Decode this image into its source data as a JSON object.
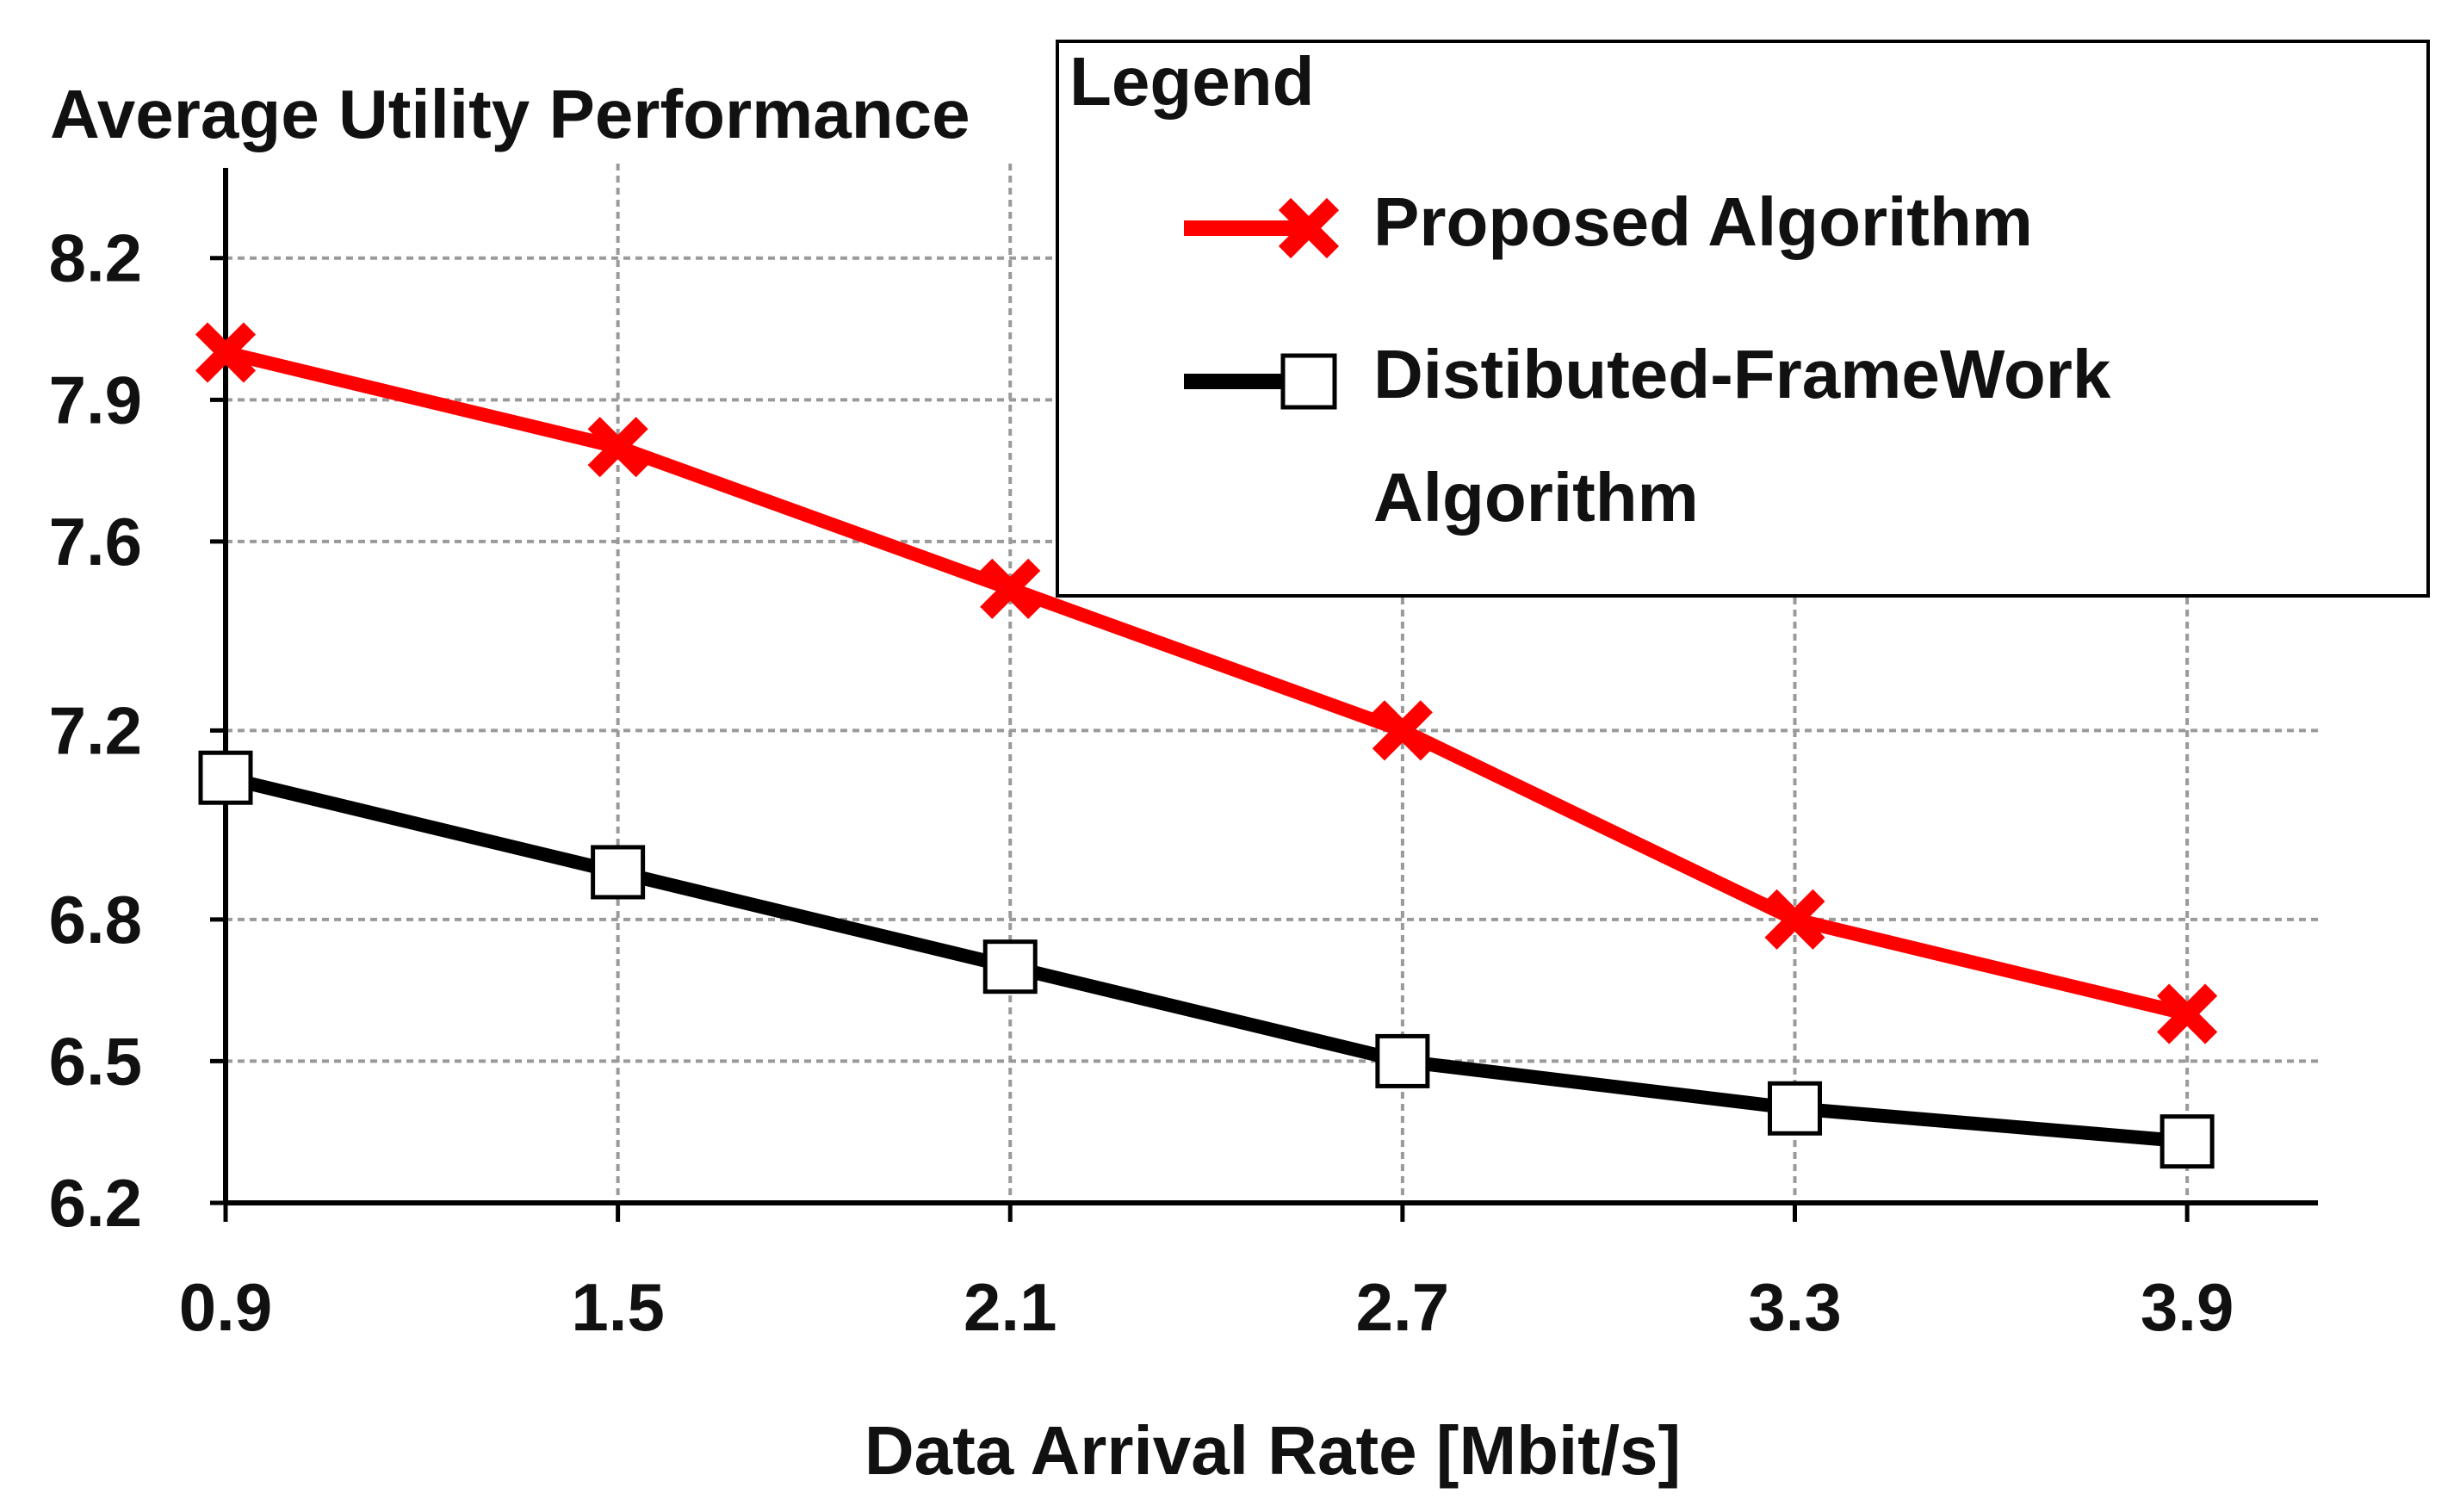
{
  "chart_data": {
    "type": "line",
    "title": "",
    "ylabel": "Average Utility Performance",
    "xlabel": "Data Arrival Rate [Mbit/s]",
    "categories": [
      "0.9",
      "1.5",
      "2.1",
      "2.7",
      "3.3",
      "3.9"
    ],
    "x": [
      0.9,
      1.5,
      2.1,
      2.7,
      3.3,
      3.9
    ],
    "xlim": [
      0.9,
      4.1
    ],
    "ylim": [
      6.2,
      8.4
    ],
    "yticks": [
      6.2,
      6.5,
      6.8,
      7.2,
      7.6,
      7.9,
      8.2
    ],
    "ytick_labels": [
      "6.2",
      "6.5",
      "6.8",
      "7.2",
      "7.6",
      "7.9",
      "8.2"
    ],
    "grid": true,
    "series": [
      {
        "name": "Proposed Algorithm",
        "values": [
          8.0,
          7.8,
          7.5,
          7.2,
          6.8,
          6.6
        ],
        "color": "#ff0000",
        "marker": "x"
      },
      {
        "name": "Distibuted-FrameWork Algorithm",
        "name_lines": [
          "Distibuted-FrameWork",
          "Algorithm"
        ],
        "values": [
          7.1,
          6.9,
          6.7,
          6.5,
          6.4,
          6.33
        ],
        "color": "#000000",
        "marker": "square"
      }
    ],
    "legend": {
      "title": "Legend",
      "placement": "top-right"
    }
  }
}
